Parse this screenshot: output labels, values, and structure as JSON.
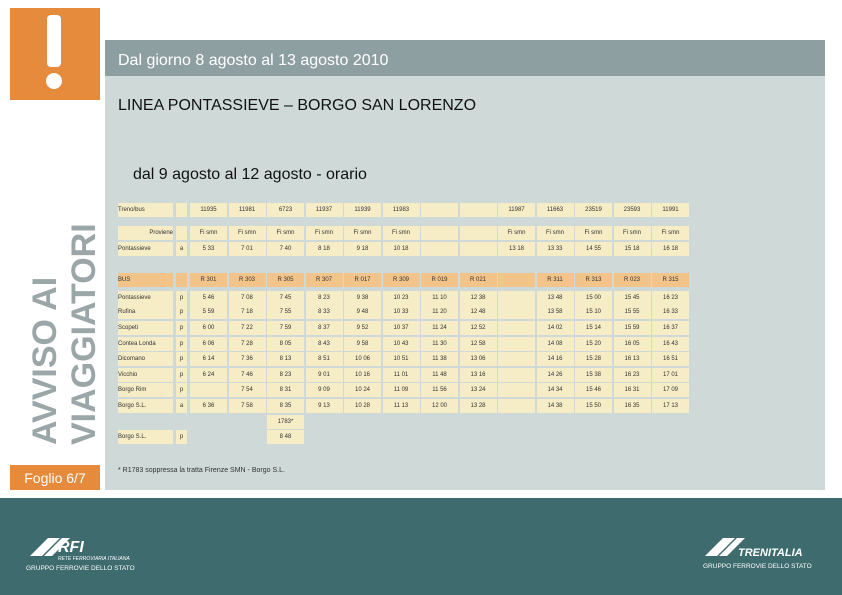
{
  "header": {
    "title": "Dal giorno 8 agosto al 13 agosto 2010",
    "line": "LINEA PONTASSIEVE – BORGO SAN LORENZO",
    "subtitle": "dal 9 agosto al 12 agosto - orario"
  },
  "sidebar": {
    "notice": [
      "AVVISO AI",
      "VIAGGIATORI"
    ],
    "page": "Foglio 6/7"
  },
  "table": {
    "rows": [
      [
        "Treno/bus",
        null,
        "11935",
        "11981",
        "6723",
        "11937",
        "11939",
        "11983",
        null,
        null,
        "11987",
        "11663",
        "23519",
        "23593",
        "11991"
      ],
      [
        "Proviene",
        null,
        "Fi smn",
        "Fi smn",
        "Fi smn",
        "Fi smn",
        "Fi smn",
        "Fi smn",
        null,
        null,
        "Fi smn",
        "Fi smn",
        "Fi smn",
        "Fi smn",
        "Fi smn"
      ],
      [
        "Pontassieve",
        "a",
        "5 33",
        "7 01",
        "7 40",
        "8 18",
        "9 18",
        "10 18",
        null,
        null,
        "13 18",
        "13 33",
        "14 55",
        "15 18",
        "16 18"
      ],
      [
        "BUS",
        null,
        "R 301",
        "R 303",
        "R 305",
        "R 307",
        "R 017",
        "R 309",
        "R 019",
        "R 021",
        null,
        "R 311",
        "R 313",
        "R 023",
        "R 315"
      ],
      [
        "Pontassieve",
        "p",
        "5 46",
        "7 08",
        "7 45",
        "8 23",
        "9 38",
        "10 23",
        "11 10",
        "12 38",
        null,
        "13 48",
        "15 00",
        "15 45",
        "16 23"
      ],
      [
        "Rufina",
        "p",
        "5 59",
        "7 18",
        "7 55",
        "8 33",
        "9 48",
        "10 33",
        "11 20",
        "12 48",
        null,
        "13 58",
        "15 10",
        "15 55",
        "16 33"
      ],
      [
        "Scopeti",
        "p",
        "6 00",
        "7 22",
        "7 59",
        "8 37",
        "9 52",
        "10 37",
        "11 24",
        "12 52",
        null,
        "14 02",
        "15 14",
        "15 59",
        "16 37"
      ],
      [
        "Contea Londa",
        "p",
        "6 06",
        "7 28",
        "8 05",
        "8 43",
        "9 58",
        "10 43",
        "11 30",
        "12 58",
        null,
        "14 08",
        "15 20",
        "16 05",
        "16 43"
      ],
      [
        "Dicomano",
        "p",
        "6 14",
        "7 36",
        "8 13",
        "8 51",
        "10 06",
        "10 51",
        "11 38",
        "13 06",
        null,
        "14 16",
        "15 28",
        "16 13",
        "16 51"
      ],
      [
        "Vicchio",
        "p",
        "6 24",
        "7 46",
        "8 23",
        "9 01",
        "10 16",
        "11 01",
        "11 48",
        "13 16",
        null,
        "14 26",
        "15 38",
        "16 23",
        "17 01"
      ],
      [
        "Borgo Rim",
        "p",
        null,
        "7 54",
        "8 31",
        "9 09",
        "10 24",
        "11 09",
        "11 56",
        "13 24",
        null,
        "14 34",
        "15 46",
        "16 31",
        "17 09"
      ],
      [
        "Borgo S.L.",
        "a",
        "6 36",
        "7 58",
        "8 35",
        "9 13",
        "10 28",
        "11 13",
        "12 00",
        "13 28",
        null,
        "14 38",
        "15 50",
        "16 35",
        "17 13"
      ],
      [
        null,
        null,
        null,
        null,
        "1783*",
        null,
        null,
        null,
        null,
        null,
        null,
        null,
        null,
        null,
        null
      ],
      [
        "Borgo S.L.",
        "p",
        null,
        null,
        "8 48",
        null,
        null,
        null,
        null,
        null,
        null,
        null,
        null,
        null,
        null
      ]
    ]
  },
  "footnote": "* R1783 soppressa la tratta Firenze SMN - Borgo S.L.",
  "footer": {
    "left": {
      "brand": "RFI",
      "tagline": "RETE FERROVIARIA ITALIANA",
      "group": "GRUPPO FERROVIE DELLO STATO"
    },
    "right": {
      "brand": "TRENITALIA",
      "group": "GRUPPO FERROVIE DELLO STATO"
    }
  }
}
